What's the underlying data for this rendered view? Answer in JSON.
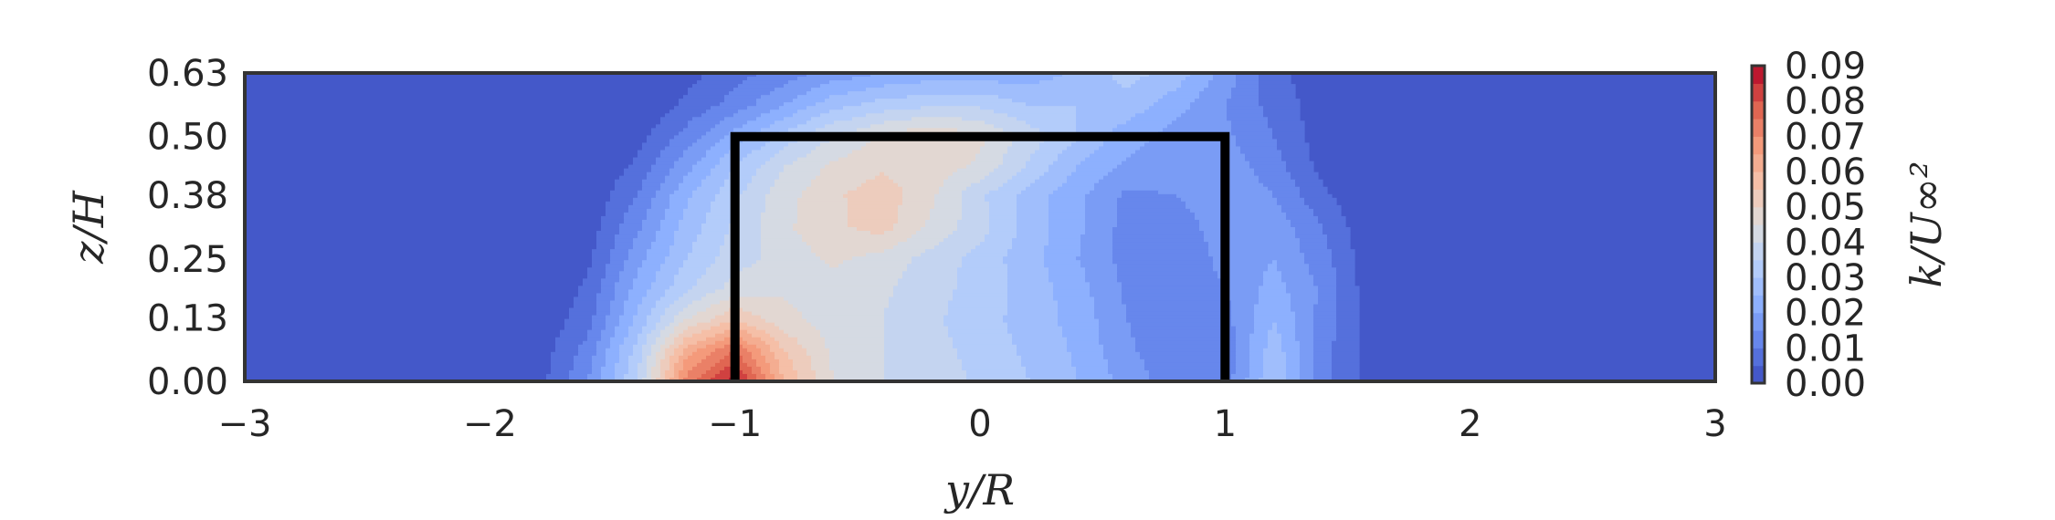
{
  "chart_data": {
    "type": "heatmap",
    "subtype": "filled-contour",
    "xlabel": "y/R",
    "ylabel": "z/H",
    "colorbar_label": "k/U∞²",
    "xlim": [
      -3,
      3
    ],
    "ylim": [
      0,
      0.63
    ],
    "xticks": [
      "−3",
      "−2",
      "−1",
      "0",
      "1",
      "2",
      "3"
    ],
    "xtick_values": [
      -3,
      -2,
      -1,
      0,
      1,
      2,
      3
    ],
    "yticks": [
      "0.00",
      "0.13",
      "0.25",
      "0.38",
      "0.50",
      "0.63"
    ],
    "ytick_values": [
      0.0,
      0.13,
      0.25,
      0.38,
      0.5,
      0.63
    ],
    "colorbar_ticks": [
      "0.00",
      "0.01",
      "0.02",
      "0.03",
      "0.04",
      "0.05",
      "0.06",
      "0.07",
      "0.08",
      "0.09"
    ],
    "colorbar_tick_values": [
      0,
      0.01,
      0.02,
      0.03,
      0.04,
      0.05,
      0.06,
      0.07,
      0.08,
      0.09
    ],
    "colormap": "coolwarm",
    "levels": 18,
    "vmin": 0.0,
    "vmax": 0.09,
    "overlay_outline": {
      "x": [
        -1,
        -1,
        1,
        1
      ],
      "y": [
        0,
        0.5,
        0.5,
        0
      ]
    },
    "grid_x": [
      -3.0,
      -2.0,
      -1.8,
      -1.6,
      -1.4,
      -1.2,
      -1.0,
      -0.8,
      -0.6,
      -0.4,
      -0.2,
      0.0,
      0.2,
      0.4,
      0.6,
      0.8,
      1.0,
      1.2,
      1.4,
      1.6,
      2.0,
      3.0
    ],
    "grid_z": [
      0.0,
      0.063,
      0.125,
      0.19,
      0.25,
      0.315,
      0.38,
      0.44,
      0.5,
      0.565,
      0.63
    ],
    "values": [
      [
        0.0,
        0.0,
        0.003,
        0.015,
        0.035,
        0.072,
        0.088,
        0.06,
        0.045,
        0.04,
        0.038,
        0.034,
        0.03,
        0.025,
        0.018,
        0.012,
        0.012,
        0.03,
        0.012,
        0.002,
        0.0,
        0.0
      ],
      [
        0.0,
        0.0,
        0.002,
        0.012,
        0.032,
        0.062,
        0.075,
        0.055,
        0.044,
        0.04,
        0.037,
        0.033,
        0.029,
        0.024,
        0.016,
        0.011,
        0.012,
        0.028,
        0.012,
        0.002,
        0.0,
        0.0
      ],
      [
        0.0,
        0.0,
        0.001,
        0.008,
        0.026,
        0.045,
        0.055,
        0.047,
        0.042,
        0.04,
        0.036,
        0.032,
        0.028,
        0.023,
        0.015,
        0.01,
        0.013,
        0.025,
        0.013,
        0.002,
        0.0,
        0.0
      ],
      [
        0.0,
        0.0,
        0.0,
        0.006,
        0.022,
        0.034,
        0.042,
        0.044,
        0.043,
        0.041,
        0.037,
        0.033,
        0.028,
        0.022,
        0.014,
        0.01,
        0.015,
        0.022,
        0.014,
        0.001,
        0.0,
        0.0
      ],
      [
        0.0,
        0.0,
        0.0,
        0.004,
        0.018,
        0.03,
        0.038,
        0.042,
        0.046,
        0.043,
        0.038,
        0.033,
        0.027,
        0.02,
        0.013,
        0.01,
        0.017,
        0.02,
        0.012,
        0.001,
        0.0,
        0.0
      ],
      [
        0.0,
        0.0,
        0.0,
        0.002,
        0.014,
        0.027,
        0.036,
        0.044,
        0.049,
        0.052,
        0.044,
        0.037,
        0.028,
        0.021,
        0.013,
        0.012,
        0.018,
        0.018,
        0.01,
        0.0,
        0.0,
        0.0
      ],
      [
        0.0,
        0.0,
        0.0,
        0.001,
        0.01,
        0.024,
        0.034,
        0.043,
        0.049,
        0.053,
        0.046,
        0.036,
        0.028,
        0.021,
        0.014,
        0.015,
        0.019,
        0.015,
        0.006,
        0.0,
        0.0,
        0.0
      ],
      [
        0.0,
        0.0,
        0.0,
        0.0,
        0.006,
        0.018,
        0.03,
        0.04,
        0.046,
        0.049,
        0.048,
        0.044,
        0.034,
        0.025,
        0.019,
        0.018,
        0.018,
        0.012,
        0.003,
        0.0,
        0.0,
        0.0
      ],
      [
        0.0,
        0.0,
        0.0,
        0.0,
        0.003,
        0.012,
        0.022,
        0.032,
        0.04,
        0.046,
        0.05,
        0.046,
        0.038,
        0.03,
        0.022,
        0.018,
        0.016,
        0.01,
        0.002,
        0.0,
        0.0,
        0.0
      ],
      [
        0.0,
        0.0,
        0.0,
        0.0,
        0.0,
        0.006,
        0.012,
        0.02,
        0.028,
        0.032,
        0.034,
        0.034,
        0.03,
        0.03,
        0.028,
        0.022,
        0.015,
        0.008,
        0.002,
        0.0,
        0.0,
        0.0
      ],
      [
        0.0,
        0.0,
        0.0,
        0.0,
        0.0,
        0.003,
        0.008,
        0.012,
        0.017,
        0.02,
        0.022,
        0.022,
        0.022,
        0.026,
        0.032,
        0.028,
        0.018,
        0.007,
        0.001,
        0.0,
        0.0,
        0.0
      ]
    ]
  }
}
